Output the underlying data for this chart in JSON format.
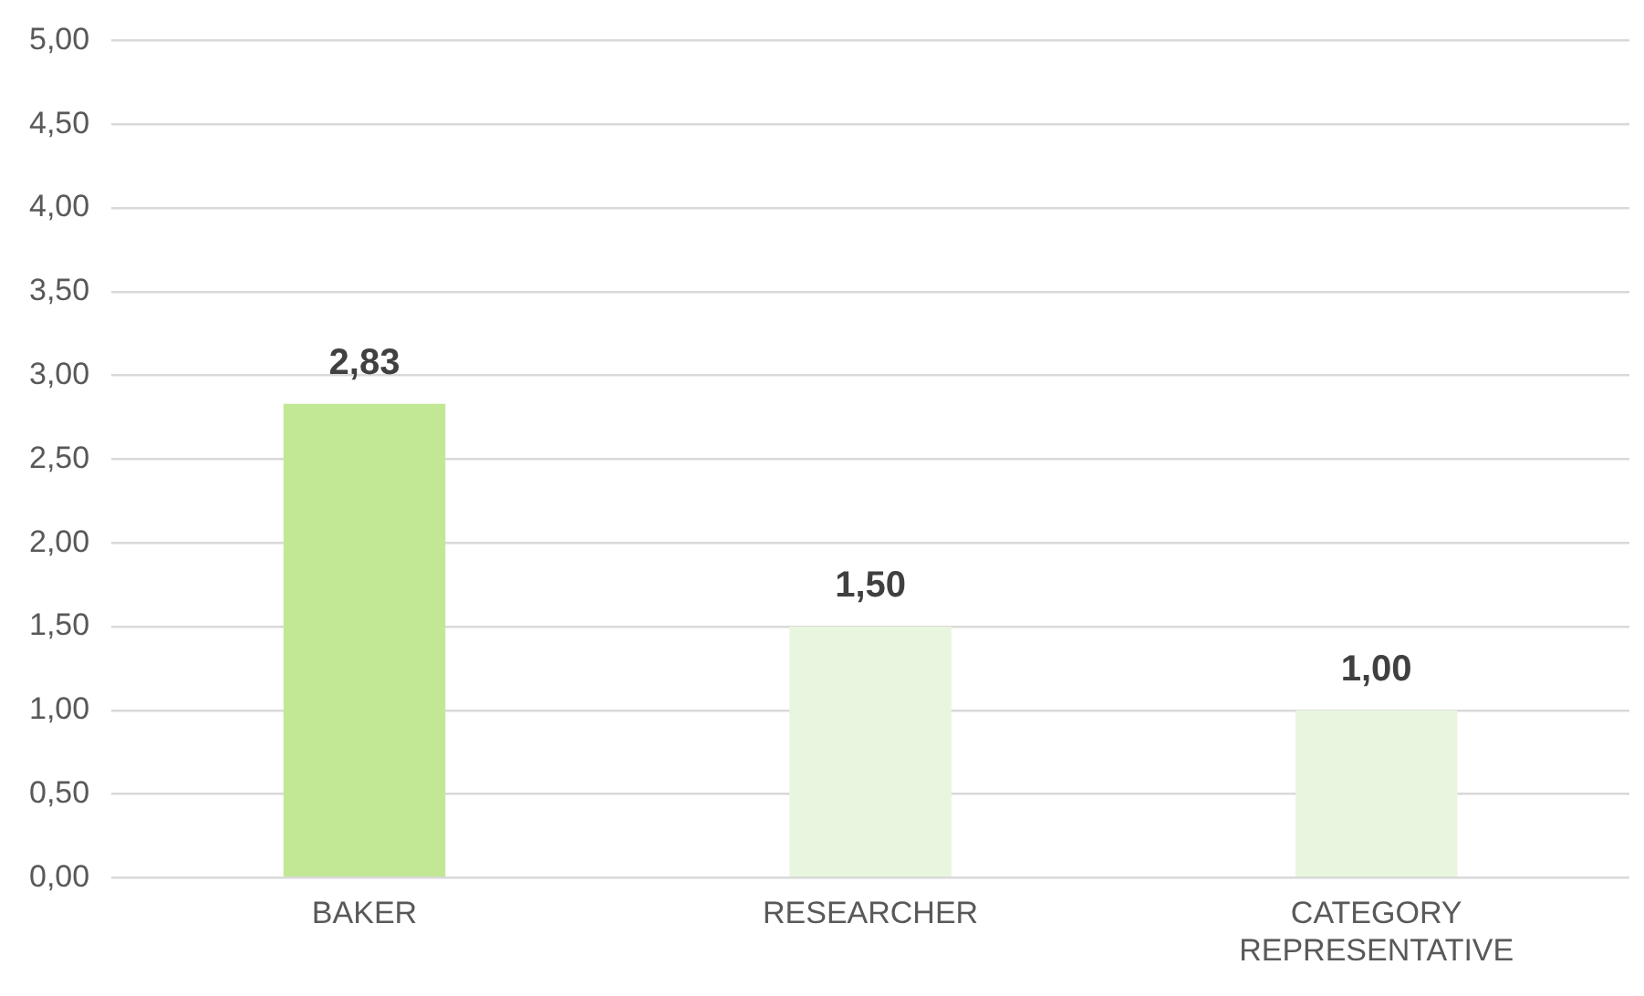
{
  "chart_data": {
    "type": "bar",
    "categories": [
      "BAKER",
      "RESEARCHER",
      "CATEGORY REPRESENTATIVE"
    ],
    "values": [
      2.83,
      1.5,
      1.0
    ],
    "colors": [
      "#c2e896",
      "#e9f6df",
      "#e9f6df"
    ],
    "value_labels": [
      "2,83",
      "1,50",
      "1,00"
    ],
    "ylim": [
      0,
      5
    ],
    "yticks": [
      {
        "value": 0,
        "label": "0,00"
      },
      {
        "value": 0.5,
        "label": "0,50"
      },
      {
        "value": 1,
        "label": "1,00"
      },
      {
        "value": 1.5,
        "label": "1,50"
      },
      {
        "value": 2,
        "label": "2,00"
      },
      {
        "value": 2.5,
        "label": "2,50"
      },
      {
        "value": 3,
        "label": "3,00"
      },
      {
        "value": 3.5,
        "label": "3,50"
      },
      {
        "value": 4,
        "label": "4,00"
      },
      {
        "value": 4.5,
        "label": "4,50"
      },
      {
        "value": 5,
        "label": "5,00"
      }
    ],
    "grid": "y",
    "legend": false
  }
}
